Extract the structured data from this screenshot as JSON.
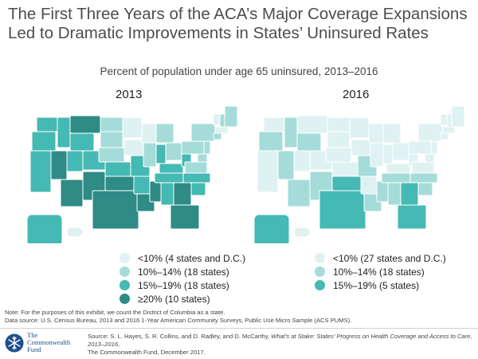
{
  "title": "The First Three Years of the ACA’s Major Coverage Expansions Led to Dramatic Improvements in States’ Uninsured Rates",
  "subtitle": "Percent of population under age 65 uninsured, 2013–2016",
  "colors": {
    "lt10": "#dff2f1",
    "r10_14": "#a5dcda",
    "r15_19": "#45b9b3",
    "ge20": "#2e8b86",
    "border": "#ffffff",
    "brand": "#1d4f8c"
  },
  "maps": [
    {
      "year": "2013",
      "legend": [
        {
          "label": "<10% (4 states and D.C.)",
          "color_key": "lt10"
        },
        {
          "label": "10%–14% (18 states)",
          "color_key": "r10_14"
        },
        {
          "label": "15%–19% (18 states)",
          "color_key": "r15_19"
        },
        {
          "label": "≥20% (10 states)",
          "color_key": "ge20"
        }
      ]
    },
    {
      "year": "2016",
      "legend": [
        {
          "label": "<10% (27 states and D.C.)",
          "color_key": "lt10"
        },
        {
          "label": "10%–14% (18 states)",
          "color_key": "r10_14"
        },
        {
          "label": "15%–19% (5 states)",
          "color_key": "r15_19"
        }
      ]
    }
  ],
  "note": "Note: For the purposes of this exhibit, we count the District of Columbia as a state.",
  "data_source": "Data source: U.S. Census Bureau, 2013 and 2016 1-Year American Community Surveys, Public Use Micro Sample (ACS PUMS).",
  "source": {
    "prefix": "Source: S. L. Hayes, S. R. Collins, and D. Radley, and D. McCarthy, ",
    "italic": "What’s at Stake: States’ Progress on Health Coverage and Access to Care, 2013–2016",
    "suffix": ",",
    "line2": "The Commonwealth Fund, December 2017."
  },
  "brand": {
    "line1": "The",
    "line2": "Commonwealth",
    "line3": "Fund"
  }
}
